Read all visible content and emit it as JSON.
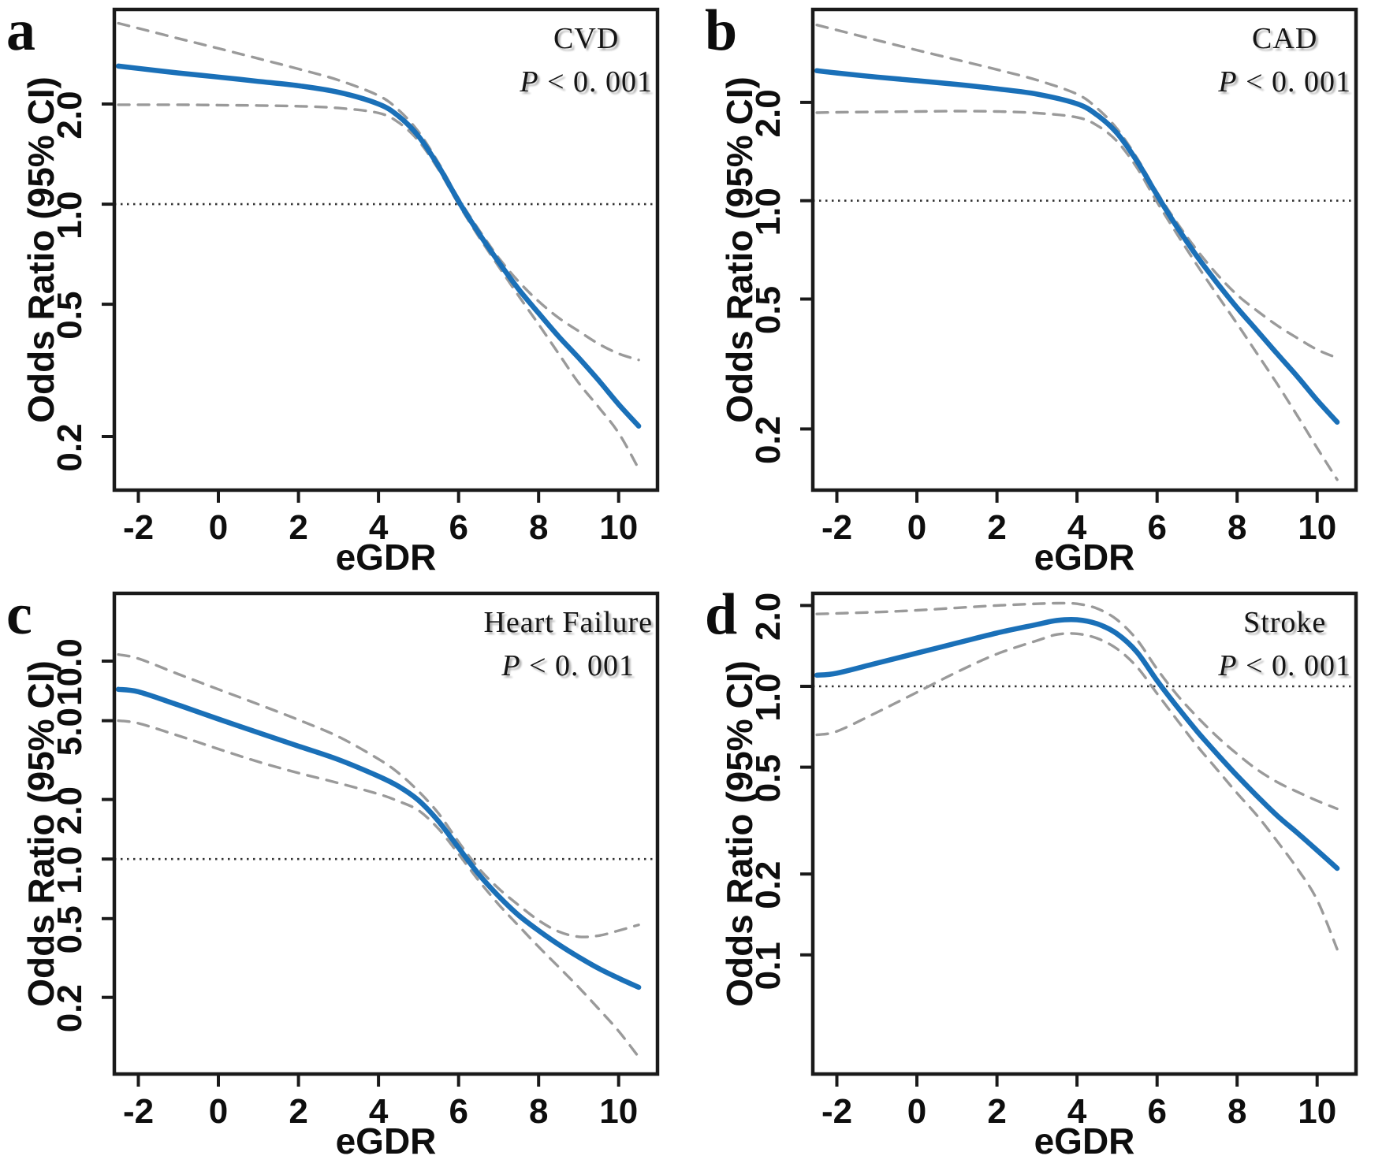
{
  "figure": {
    "y_axis_label": "Odds Ratio (95% CI)",
    "x_axis_label": "eGDR",
    "colors": {
      "curve": "#1a70b8",
      "ci": "#9a9a9a",
      "refline": "#333333",
      "axis": "#1a1a1a",
      "tick_text": "#0e0e0e"
    },
    "reference_or": 1.0
  },
  "chart_data": [
    {
      "type": "line",
      "letter": "a",
      "title": "CVD",
      "p_symbol": "P",
      "p_rest": "< 0. 001",
      "xlabel": "eGDR",
      "ylabel": "Odds Ratio (95% CI)",
      "yscale": "log",
      "xlim": [
        -2.6,
        10.97
      ],
      "ylim": [
        0.138,
        3.85
      ],
      "xticks": [
        -2,
        0,
        2,
        4,
        6,
        8,
        10
      ],
      "xtick_labels": [
        "-2",
        "0",
        "2",
        "4",
        "6",
        "8",
        "10"
      ],
      "yticks": [
        2.0,
        1.0,
        0.5,
        0.2
      ],
      "ytick_labels": [
        "2.0",
        "1.0",
        "0.5",
        "0.2"
      ],
      "reference_or": 1.0,
      "x": [
        -2.5,
        -2,
        -1,
        0,
        1,
        2,
        3,
        4,
        4.5,
        5,
        5.5,
        6,
        6.5,
        7,
        7.5,
        8,
        8.5,
        9,
        9.5,
        10,
        10.5
      ],
      "series": [
        {
          "name": "Odds Ratio",
          "style": "solid",
          "color_key": "curve",
          "values": [
            2.6,
            2.56,
            2.48,
            2.41,
            2.34,
            2.27,
            2.17,
            2.0,
            1.84,
            1.6,
            1.3,
            1.02,
            0.82,
            0.67,
            0.555,
            0.47,
            0.4,
            0.345,
            0.295,
            0.25,
            0.215
          ]
        },
        {
          "name": "95% CI upper",
          "style": "dashed",
          "color_key": "ci",
          "values": [
            3.5,
            3.38,
            3.15,
            2.94,
            2.74,
            2.55,
            2.36,
            2.12,
            1.92,
            1.65,
            1.33,
            1.04,
            0.84,
            0.69,
            0.585,
            0.51,
            0.455,
            0.415,
            0.38,
            0.355,
            0.34
          ]
        },
        {
          "name": "95% CI lower",
          "style": "dashed",
          "color_key": "ci",
          "values": [
            1.99,
            1.99,
            1.99,
            1.985,
            1.98,
            1.97,
            1.945,
            1.88,
            1.76,
            1.55,
            1.27,
            1.0,
            0.8,
            0.65,
            0.53,
            0.435,
            0.355,
            0.29,
            0.245,
            0.205,
            0.16
          ]
        }
      ]
    },
    {
      "type": "line",
      "letter": "b",
      "title": "CAD",
      "p_symbol": "P",
      "p_rest": "< 0. 001",
      "xlabel": "eGDR",
      "ylabel": "Odds Ratio (95% CI)",
      "yscale": "log",
      "xlim": [
        -2.6,
        10.97
      ],
      "ylim": [
        0.13,
        3.85
      ],
      "xticks": [
        -2,
        0,
        2,
        4,
        6,
        8,
        10
      ],
      "xtick_labels": [
        "-2",
        "0",
        "2",
        "4",
        "6",
        "8",
        "10"
      ],
      "yticks": [
        2.0,
        1.0,
        0.5,
        0.2
      ],
      "ytick_labels": [
        "2.0",
        "1.0",
        "0.5",
        "0.2"
      ],
      "reference_or": 1.0,
      "x": [
        -2.5,
        -2,
        -1,
        0,
        1,
        2,
        3,
        4,
        4.5,
        5,
        5.5,
        6,
        6.5,
        7,
        7.5,
        8,
        8.5,
        9,
        9.5,
        10,
        10.5
      ],
      "series": [
        {
          "name": "Odds Ratio",
          "style": "solid",
          "color_key": "curve",
          "values": [
            2.5,
            2.46,
            2.39,
            2.33,
            2.27,
            2.2,
            2.12,
            1.98,
            1.83,
            1.61,
            1.32,
            1.04,
            0.83,
            0.675,
            0.56,
            0.47,
            0.4,
            0.34,
            0.29,
            0.245,
            0.21
          ]
        },
        {
          "name": "95% CI upper",
          "style": "dashed",
          "color_key": "ci",
          "values": [
            3.45,
            3.33,
            3.1,
            2.89,
            2.7,
            2.52,
            2.34,
            2.12,
            1.92,
            1.66,
            1.35,
            1.06,
            0.855,
            0.705,
            0.595,
            0.515,
            0.46,
            0.415,
            0.38,
            0.35,
            0.33
          ]
        },
        {
          "name": "95% CI lower",
          "style": "dashed",
          "color_key": "ci",
          "values": [
            1.86,
            1.865,
            1.87,
            1.875,
            1.88,
            1.875,
            1.855,
            1.8,
            1.7,
            1.52,
            1.26,
            0.99,
            0.79,
            0.635,
            0.515,
            0.42,
            0.34,
            0.275,
            0.22,
            0.175,
            0.14
          ]
        }
      ]
    },
    {
      "type": "line",
      "letter": "c",
      "title": "Heart Failure",
      "p_symbol": "P",
      "p_rest": "< 0. 001",
      "xlabel": "eGDR",
      "ylabel": "Odds Ratio (95% CI)",
      "yscale": "log",
      "xlim": [
        -2.6,
        10.97
      ],
      "ylim": [
        0.082,
        22.0
      ],
      "xticks": [
        -2,
        0,
        2,
        4,
        6,
        8,
        10
      ],
      "xtick_labels": [
        "-2",
        "0",
        "2",
        "4",
        "6",
        "8",
        "10"
      ],
      "yticks": [
        10.0,
        5.0,
        2.0,
        1.0,
        0.5,
        0.2
      ],
      "ytick_labels": [
        "10.0",
        "5.0",
        "2.0",
        "1.0",
        "0.5",
        "0.2"
      ],
      "reference_or": 1.0,
      "x": [
        -2.5,
        -2,
        -1,
        0,
        1,
        2,
        3,
        4,
        4.5,
        5,
        5.5,
        6,
        6.5,
        7,
        7.5,
        8,
        8.5,
        9,
        9.5,
        10,
        10.5
      ],
      "series": [
        {
          "name": "Odds Ratio",
          "style": "solid",
          "color_key": "curve",
          "values": [
            7.2,
            7.0,
            6.0,
            5.1,
            4.35,
            3.72,
            3.18,
            2.62,
            2.33,
            1.98,
            1.55,
            1.14,
            0.84,
            0.65,
            0.52,
            0.435,
            0.37,
            0.32,
            0.28,
            0.25,
            0.225
          ]
        },
        {
          "name": "95% CI upper",
          "style": "dashed",
          "color_key": "ci",
          "values": [
            10.8,
            10.3,
            8.6,
            7.2,
            6.05,
            5.05,
            4.15,
            3.2,
            2.72,
            2.2,
            1.7,
            1.22,
            0.9,
            0.71,
            0.585,
            0.49,
            0.43,
            0.405,
            0.41,
            0.435,
            0.465
          ]
        },
        {
          "name": "95% CI lower",
          "style": "dashed",
          "color_key": "ci",
          "values": [
            5.0,
            4.85,
            4.2,
            3.6,
            3.1,
            2.72,
            2.42,
            2.13,
            1.96,
            1.76,
            1.42,
            1.06,
            0.78,
            0.59,
            0.46,
            0.36,
            0.285,
            0.225,
            0.175,
            0.135,
            0.1
          ]
        }
      ]
    },
    {
      "type": "line",
      "letter": "d",
      "title": "Stroke",
      "p_symbol": "P",
      "p_rest": "< 0. 001",
      "xlabel": "eGDR",
      "ylabel": "Odds Ratio (95% CI)",
      "yscale": "log",
      "xlim": [
        -2.6,
        10.97
      ],
      "ylim": [
        0.036,
        2.22
      ],
      "xticks": [
        -2,
        0,
        2,
        4,
        6,
        8,
        10
      ],
      "xtick_labels": [
        "-2",
        "0",
        "2",
        "4",
        "6",
        "8",
        "10"
      ],
      "yticks": [
        2.0,
        1.0,
        0.5,
        0.2,
        0.1
      ],
      "ytick_labels": [
        "2.0",
        "1.0",
        "0.5",
        "0.2",
        "0.1"
      ],
      "reference_or": 1.0,
      "x": [
        -2.5,
        -2,
        -1,
        0,
        1,
        2,
        3,
        3.5,
        4,
        4.5,
        5,
        5.5,
        6,
        6.5,
        7,
        7.5,
        8,
        8.5,
        9,
        9.5,
        10,
        10.5
      ],
      "series": [
        {
          "name": "Odds Ratio",
          "style": "solid",
          "color_key": "curve",
          "values": [
            1.1,
            1.12,
            1.22,
            1.33,
            1.45,
            1.58,
            1.7,
            1.76,
            1.77,
            1.71,
            1.57,
            1.34,
            1.05,
            0.84,
            0.68,
            0.56,
            0.465,
            0.39,
            0.33,
            0.285,
            0.245,
            0.21
          ]
        },
        {
          "name": "95% CI upper",
          "style": "dashed",
          "color_key": "ci",
          "values": [
            1.86,
            1.87,
            1.89,
            1.92,
            1.96,
            2.0,
            2.03,
            2.04,
            2.03,
            1.95,
            1.77,
            1.49,
            1.16,
            0.93,
            0.77,
            0.65,
            0.56,
            0.49,
            0.44,
            0.405,
            0.375,
            0.35
          ]
        },
        {
          "name": "95% CI lower",
          "style": "dashed",
          "color_key": "ci",
          "values": [
            0.66,
            0.68,
            0.8,
            0.95,
            1.13,
            1.32,
            1.48,
            1.56,
            1.57,
            1.51,
            1.38,
            1.18,
            0.94,
            0.75,
            0.6,
            0.49,
            0.4,
            0.33,
            0.265,
            0.21,
            0.16,
            0.105
          ]
        }
      ]
    }
  ]
}
